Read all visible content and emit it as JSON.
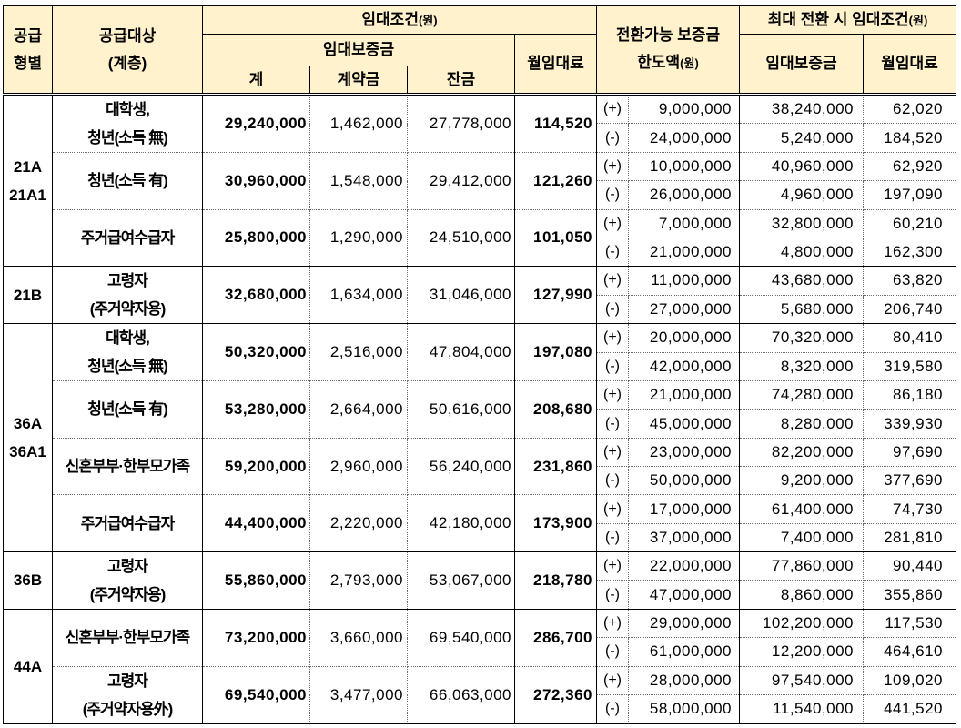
{
  "header": {
    "supply_type": [
      "공급",
      "형별"
    ],
    "target": [
      "공급대상",
      "(계층)"
    ],
    "rent_terms": {
      "label": "임대조건",
      "unit": "(원)"
    },
    "deposit": "임대보증금",
    "deposit_total": "계",
    "down_payment": "계약금",
    "balance": "잔금",
    "monthly_rent": "월임대료",
    "conversion_limit": {
      "line1": "전환가능 보증금",
      "line2": "한도액",
      "unit": "(원)"
    },
    "max_conversion": {
      "label": "최대 전환 시 임대조건",
      "unit": "(원)"
    },
    "max_deposit": "임대보증금",
    "max_monthly_rent": "월임대료"
  },
  "colors": {
    "header_background": "#fff2cc"
  },
  "groups": [
    {
      "type": [
        "21A",
        "21A1"
      ],
      "rows": [
        {
          "target": [
            "대학생,",
            "청년(소득 無)"
          ],
          "deposit_total": "29,240,000",
          "down_payment": "1,462,000",
          "balance": "27,778,000",
          "monthly_rent": "114,520",
          "plus": {
            "sign": "(+)",
            "limit": "9,000,000",
            "max_deposit": "38,240,000",
            "max_rent": "62,020"
          },
          "minus": {
            "sign": "(-)",
            "limit": "24,000,000",
            "max_deposit": "5,240,000",
            "max_rent": "184,520"
          }
        },
        {
          "target": [
            "청년(소득 有)"
          ],
          "deposit_total": "30,960,000",
          "down_payment": "1,548,000",
          "balance": "29,412,000",
          "monthly_rent": "121,260",
          "plus": {
            "sign": "(+)",
            "limit": "10,000,000",
            "max_deposit": "40,960,000",
            "max_rent": "62,920"
          },
          "minus": {
            "sign": "(-)",
            "limit": "26,000,000",
            "max_deposit": "4,960,000",
            "max_rent": "197,090"
          }
        },
        {
          "target": [
            "주거급여수급자"
          ],
          "deposit_total": "25,800,000",
          "down_payment": "1,290,000",
          "balance": "24,510,000",
          "monthly_rent": "101,050",
          "plus": {
            "sign": "(+)",
            "limit": "7,000,000",
            "max_deposit": "32,800,000",
            "max_rent": "60,210"
          },
          "minus": {
            "sign": "(-)",
            "limit": "21,000,000",
            "max_deposit": "4,800,000",
            "max_rent": "162,300"
          }
        }
      ]
    },
    {
      "type": [
        "21B"
      ],
      "rows": [
        {
          "target": [
            "고령자",
            "(주거약자용)"
          ],
          "deposit_total": "32,680,000",
          "down_payment": "1,634,000",
          "balance": "31,046,000",
          "monthly_rent": "127,990",
          "plus": {
            "sign": "(+)",
            "limit": "11,000,000",
            "max_deposit": "43,680,000",
            "max_rent": "63,820"
          },
          "minus": {
            "sign": "(-)",
            "limit": "27,000,000",
            "max_deposit": "5,680,000",
            "max_rent": "206,740"
          }
        }
      ]
    },
    {
      "type": [
        "36A",
        "36A1"
      ],
      "rows": [
        {
          "target": [
            "대학생,",
            "청년(소득 無)"
          ],
          "deposit_total": "50,320,000",
          "down_payment": "2,516,000",
          "balance": "47,804,000",
          "monthly_rent": "197,080",
          "plus": {
            "sign": "(+)",
            "limit": "20,000,000",
            "max_deposit": "70,320,000",
            "max_rent": "80,410"
          },
          "minus": {
            "sign": "(-)",
            "limit": "42,000,000",
            "max_deposit": "8,320,000",
            "max_rent": "319,580"
          }
        },
        {
          "target": [
            "청년(소득 有)"
          ],
          "deposit_total": "53,280,000",
          "down_payment": "2,664,000",
          "balance": "50,616,000",
          "monthly_rent": "208,680",
          "plus": {
            "sign": "(+)",
            "limit": "21,000,000",
            "max_deposit": "74,280,000",
            "max_rent": "86,180"
          },
          "minus": {
            "sign": "(-)",
            "limit": "45,000,000",
            "max_deposit": "8,280,000",
            "max_rent": "339,930"
          }
        },
        {
          "target": [
            "신혼부부·한부모가족"
          ],
          "deposit_total": "59,200,000",
          "down_payment": "2,960,000",
          "balance": "56,240,000",
          "monthly_rent": "231,860",
          "plus": {
            "sign": "(+)",
            "limit": "23,000,000",
            "max_deposit": "82,200,000",
            "max_rent": "97,690"
          },
          "minus": {
            "sign": "(-)",
            "limit": "50,000,000",
            "max_deposit": "9,200,000",
            "max_rent": "377,690"
          }
        },
        {
          "target": [
            "주거급여수급자"
          ],
          "deposit_total": "44,400,000",
          "down_payment": "2,220,000",
          "balance": "42,180,000",
          "monthly_rent": "173,900",
          "plus": {
            "sign": "(+)",
            "limit": "17,000,000",
            "max_deposit": "61,400,000",
            "max_rent": "74,730"
          },
          "minus": {
            "sign": "(-)",
            "limit": "37,000,000",
            "max_deposit": "7,400,000",
            "max_rent": "281,810"
          }
        }
      ]
    },
    {
      "type": [
        "36B"
      ],
      "rows": [
        {
          "target": [
            "고령자",
            "(주거약자용)"
          ],
          "deposit_total": "55,860,000",
          "down_payment": "2,793,000",
          "balance": "53,067,000",
          "monthly_rent": "218,780",
          "plus": {
            "sign": "(+)",
            "limit": "22,000,000",
            "max_deposit": "77,860,000",
            "max_rent": "90,440"
          },
          "minus": {
            "sign": "(-)",
            "limit": "47,000,000",
            "max_deposit": "8,860,000",
            "max_rent": "355,860"
          }
        }
      ]
    },
    {
      "type": [
        "44A"
      ],
      "rows": [
        {
          "target": [
            "신혼부부·한부모가족"
          ],
          "deposit_total": "73,200,000",
          "down_payment": "3,660,000",
          "balance": "69,540,000",
          "monthly_rent": "286,700",
          "plus": {
            "sign": "(+)",
            "limit": "29,000,000",
            "max_deposit": "102,200,000",
            "max_rent": "117,530"
          },
          "minus": {
            "sign": "(-)",
            "limit": "61,000,000",
            "max_deposit": "12,200,000",
            "max_rent": "464,610"
          }
        },
        {
          "target": [
            "고령자",
            "(주거약자용外)"
          ],
          "deposit_total": "69,540,000",
          "down_payment": "3,477,000",
          "balance": "66,063,000",
          "monthly_rent": "272,360",
          "plus": {
            "sign": "(+)",
            "limit": "28,000,000",
            "max_deposit": "97,540,000",
            "max_rent": "109,020"
          },
          "minus": {
            "sign": "(-)",
            "limit": "58,000,000",
            "max_deposit": "11,540,000",
            "max_rent": "441,520"
          }
        }
      ]
    }
  ]
}
